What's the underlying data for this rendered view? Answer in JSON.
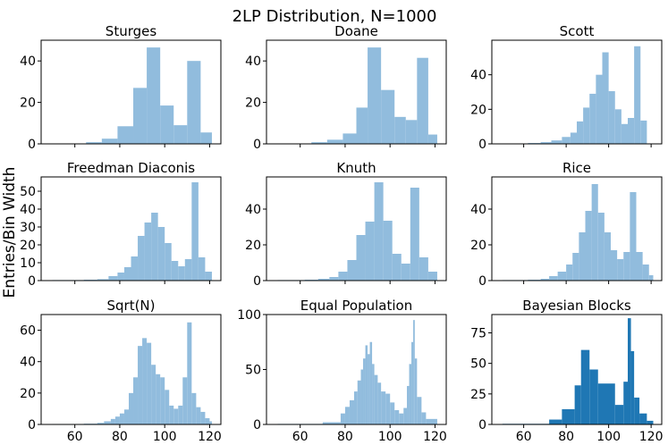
{
  "title": "2LP Distribution, N=1000",
  "ylabel": "Entries/Bin Width",
  "colors": {
    "light": "#91bcdd",
    "dark": "#1f77b4",
    "axis": "#000000"
  },
  "chart_data": [
    {
      "type": "histogram",
      "title": "Sturges",
      "xlim": [
        45,
        125
      ],
      "ylim": [
        0,
        50
      ],
      "xticks": [
        60,
        80,
        100,
        120
      ],
      "yticks": [
        0,
        20,
        40
      ],
      "show_xticklabels": false,
      "style": "light",
      "bins": [
        {
          "x0": 50,
          "x1": 58,
          "y": 0.2
        },
        {
          "x0": 58,
          "x1": 65,
          "y": 0.2
        },
        {
          "x0": 65,
          "x1": 72,
          "y": 0.8
        },
        {
          "x0": 72,
          "x1": 79,
          "y": 2.5
        },
        {
          "x0": 79,
          "x1": 86,
          "y": 8.5
        },
        {
          "x0": 86,
          "x1": 92,
          "y": 27
        },
        {
          "x0": 92,
          "x1": 98,
          "y": 46.5
        },
        {
          "x0": 98,
          "x1": 104,
          "y": 18.5
        },
        {
          "x0": 104,
          "x1": 110,
          "y": 9
        },
        {
          "x0": 110,
          "x1": 116,
          "y": 40
        },
        {
          "x0": 116,
          "x1": 121,
          "y": 5.5
        }
      ]
    },
    {
      "type": "histogram",
      "title": "Doane",
      "xlim": [
        45,
        125
      ],
      "ylim": [
        0,
        50
      ],
      "xticks": [
        60,
        80,
        100,
        120
      ],
      "yticks": [
        0,
        20,
        40
      ],
      "show_xticklabels": false,
      "style": "light",
      "bins": [
        {
          "x0": 50,
          "x1": 58,
          "y": 0.2
        },
        {
          "x0": 58,
          "x1": 65,
          "y": 0.2
        },
        {
          "x0": 65,
          "x1": 72,
          "y": 0.8
        },
        {
          "x0": 72,
          "x1": 79,
          "y": 2
        },
        {
          "x0": 79,
          "x1": 85,
          "y": 5
        },
        {
          "x0": 85,
          "x1": 90,
          "y": 17.5
        },
        {
          "x0": 90,
          "x1": 96,
          "y": 46.5
        },
        {
          "x0": 96,
          "x1": 102,
          "y": 26
        },
        {
          "x0": 102,
          "x1": 107,
          "y": 13
        },
        {
          "x0": 107,
          "x1": 112,
          "y": 11.5
        },
        {
          "x0": 112,
          "x1": 117,
          "y": 41.5
        },
        {
          "x0": 117,
          "x1": 121,
          "y": 4.5
        }
      ]
    },
    {
      "type": "histogram",
      "title": "Scott",
      "xlim": [
        45,
        125
      ],
      "ylim": [
        0,
        60
      ],
      "xticks": [
        60,
        80,
        100,
        120
      ],
      "yticks": [
        0,
        20,
        40
      ],
      "show_xticklabels": false,
      "style": "light",
      "bins": [
        {
          "x0": 50,
          "x1": 56,
          "y": 0.2
        },
        {
          "x0": 56,
          "x1": 62,
          "y": 0.2
        },
        {
          "x0": 62,
          "x1": 68,
          "y": 0.5
        },
        {
          "x0": 68,
          "x1": 73,
          "y": 1
        },
        {
          "x0": 73,
          "x1": 78,
          "y": 2
        },
        {
          "x0": 78,
          "x1": 82,
          "y": 4
        },
        {
          "x0": 82,
          "x1": 85,
          "y": 6.5
        },
        {
          "x0": 85,
          "x1": 88,
          "y": 13
        },
        {
          "x0": 88,
          "x1": 91,
          "y": 21
        },
        {
          "x0": 91,
          "x1": 94,
          "y": 29
        },
        {
          "x0": 94,
          "x1": 97,
          "y": 40
        },
        {
          "x0": 97,
          "x1": 100,
          "y": 53
        },
        {
          "x0": 100,
          "x1": 103,
          "y": 30.5
        },
        {
          "x0": 103,
          "x1": 106,
          "y": 20
        },
        {
          "x0": 106,
          "x1": 109,
          "y": 11.5
        },
        {
          "x0": 109,
          "x1": 112,
          "y": 15
        },
        {
          "x0": 112,
          "x1": 115,
          "y": 56.5
        },
        {
          "x0": 115,
          "x1": 118,
          "y": 13.5
        }
      ]
    },
    {
      "type": "histogram",
      "title": "Freedman Diaconis",
      "xlim": [
        45,
        125
      ],
      "ylim": [
        0,
        58
      ],
      "xticks": [
        60,
        80,
        100,
        120
      ],
      "yticks": [
        0,
        10,
        20,
        30,
        40,
        50
      ],
      "show_xticklabels": false,
      "style": "light",
      "bins": [
        {
          "x0": 50,
          "x1": 57,
          "y": 0.3
        },
        {
          "x0": 57,
          "x1": 64,
          "y": 0.3
        },
        {
          "x0": 64,
          "x1": 70,
          "y": 0.5
        },
        {
          "x0": 70,
          "x1": 75,
          "y": 0.8
        },
        {
          "x0": 75,
          "x1": 79,
          "y": 2.5
        },
        {
          "x0": 79,
          "x1": 82,
          "y": 4.5
        },
        {
          "x0": 82,
          "x1": 85,
          "y": 7.5
        },
        {
          "x0": 85,
          "x1": 88,
          "y": 13.5
        },
        {
          "x0": 88,
          "x1": 91,
          "y": 25
        },
        {
          "x0": 91,
          "x1": 94,
          "y": 32.5
        },
        {
          "x0": 94,
          "x1": 97,
          "y": 38
        },
        {
          "x0": 97,
          "x1": 100,
          "y": 30
        },
        {
          "x0": 100,
          "x1": 103,
          "y": 21
        },
        {
          "x0": 103,
          "x1": 106,
          "y": 11
        },
        {
          "x0": 106,
          "x1": 109,
          "y": 8
        },
        {
          "x0": 109,
          "x1": 112,
          "y": 12
        },
        {
          "x0": 112,
          "x1": 115,
          "y": 55
        },
        {
          "x0": 115,
          "x1": 118,
          "y": 13
        },
        {
          "x0": 118,
          "x1": 121,
          "y": 5
        }
      ]
    },
    {
      "type": "histogram",
      "title": "Knuth",
      "xlim": [
        45,
        125
      ],
      "ylim": [
        0,
        58
      ],
      "xticks": [
        60,
        80,
        100,
        120
      ],
      "yticks": [
        0,
        20,
        40
      ],
      "show_xticklabels": false,
      "style": "light",
      "bins": [
        {
          "x0": 50,
          "x1": 56,
          "y": 0.3
        },
        {
          "x0": 56,
          "x1": 62,
          "y": 0.3
        },
        {
          "x0": 62,
          "x1": 68,
          "y": 0.5
        },
        {
          "x0": 68,
          "x1": 73,
          "y": 1
        },
        {
          "x0": 73,
          "x1": 77,
          "y": 2
        },
        {
          "x0": 77,
          "x1": 81,
          "y": 5
        },
        {
          "x0": 81,
          "x1": 85,
          "y": 11.5
        },
        {
          "x0": 85,
          "x1": 89,
          "y": 25.5
        },
        {
          "x0": 89,
          "x1": 93,
          "y": 33
        },
        {
          "x0": 93,
          "x1": 97,
          "y": 55
        },
        {
          "x0": 97,
          "x1": 101,
          "y": 33.5
        },
        {
          "x0": 101,
          "x1": 105,
          "y": 15
        },
        {
          "x0": 105,
          "x1": 109,
          "y": 9.5
        },
        {
          "x0": 109,
          "x1": 113,
          "y": 52
        },
        {
          "x0": 113,
          "x1": 117,
          "y": 13
        },
        {
          "x0": 117,
          "x1": 121,
          "y": 5
        }
      ]
    },
    {
      "type": "histogram",
      "title": "Rice",
      "xlim": [
        45,
        125
      ],
      "ylim": [
        0,
        58
      ],
      "xticks": [
        60,
        80,
        100,
        120
      ],
      "yticks": [
        0,
        20,
        40
      ],
      "show_xticklabels": false,
      "style": "light",
      "bins": [
        {
          "x0": 50,
          "x1": 56,
          "y": 0.3
        },
        {
          "x0": 56,
          "x1": 62,
          "y": 0.3
        },
        {
          "x0": 62,
          "x1": 68,
          "y": 0.5
        },
        {
          "x0": 68,
          "x1": 72,
          "y": 1
        },
        {
          "x0": 72,
          "x1": 76,
          "y": 2.5
        },
        {
          "x0": 76,
          "x1": 80,
          "y": 5
        },
        {
          "x0": 80,
          "x1": 83,
          "y": 9
        },
        {
          "x0": 83,
          "x1": 86,
          "y": 15.5
        },
        {
          "x0": 86,
          "x1": 89,
          "y": 27
        },
        {
          "x0": 89,
          "x1": 92,
          "y": 39
        },
        {
          "x0": 92,
          "x1": 95,
          "y": 54
        },
        {
          "x0": 95,
          "x1": 98,
          "y": 38
        },
        {
          "x0": 98,
          "x1": 101,
          "y": 27
        },
        {
          "x0": 101,
          "x1": 104,
          "y": 17
        },
        {
          "x0": 104,
          "x1": 107,
          "y": 12
        },
        {
          "x0": 107,
          "x1": 110,
          "y": 16
        },
        {
          "x0": 110,
          "x1": 113,
          "y": 49.5
        },
        {
          "x0": 113,
          "x1": 116,
          "y": 16
        },
        {
          "x0": 116,
          "x1": 119,
          "y": 9
        },
        {
          "x0": 119,
          "x1": 121,
          "y": 3
        }
      ]
    },
    {
      "type": "histogram",
      "title": "Sqrt(N)",
      "xlim": [
        45,
        125
      ],
      "ylim": [
        0,
        70
      ],
      "xticks": [
        60,
        80,
        100,
        120
      ],
      "yticks": [
        0,
        20,
        40,
        60
      ],
      "show_xticklabels": true,
      "style": "light",
      "bins": [
        {
          "x0": 50,
          "x1": 57,
          "y": 0.3
        },
        {
          "x0": 57,
          "x1": 64,
          "y": 0.3
        },
        {
          "x0": 64,
          "x1": 70,
          "y": 0.5
        },
        {
          "x0": 70,
          "x1": 73,
          "y": 1
        },
        {
          "x0": 73,
          "x1": 76,
          "y": 2
        },
        {
          "x0": 76,
          "x1": 78,
          "y": 3.5
        },
        {
          "x0": 78,
          "x1": 80,
          "y": 5
        },
        {
          "x0": 80,
          "x1": 82,
          "y": 7
        },
        {
          "x0": 82,
          "x1": 84,
          "y": 9.5
        },
        {
          "x0": 84,
          "x1": 86,
          "y": 20
        },
        {
          "x0": 86,
          "x1": 88,
          "y": 30
        },
        {
          "x0": 88,
          "x1": 90,
          "y": 50
        },
        {
          "x0": 90,
          "x1": 92,
          "y": 55
        },
        {
          "x0": 92,
          "x1": 94,
          "y": 52
        },
        {
          "x0": 94,
          "x1": 96,
          "y": 38
        },
        {
          "x0": 96,
          "x1": 98,
          "y": 32
        },
        {
          "x0": 98,
          "x1": 100,
          "y": 30
        },
        {
          "x0": 100,
          "x1": 102,
          "y": 22
        },
        {
          "x0": 102,
          "x1": 104,
          "y": 12
        },
        {
          "x0": 104,
          "x1": 106,
          "y": 10
        },
        {
          "x0": 106,
          "x1": 108,
          "y": 12
        },
        {
          "x0": 108,
          "x1": 110,
          "y": 30
        },
        {
          "x0": 110,
          "x1": 112,
          "y": 65
        },
        {
          "x0": 112,
          "x1": 114,
          "y": 20
        },
        {
          "x0": 114,
          "x1": 116,
          "y": 11
        },
        {
          "x0": 116,
          "x1": 118,
          "y": 8
        },
        {
          "x0": 118,
          "x1": 120,
          "y": 4
        },
        {
          "x0": 120,
          "x1": 121,
          "y": 2
        }
      ]
    },
    {
      "type": "histogram",
      "title": "Equal Population",
      "xlim": [
        45,
        125
      ],
      "ylim": [
        0,
        100
      ],
      "xticks": [
        60,
        80,
        100,
        120
      ],
      "yticks": [
        0,
        50,
        100
      ],
      "show_xticklabels": true,
      "style": "light",
      "bins": [
        {
          "x0": 50,
          "x1": 70,
          "y": 0.5
        },
        {
          "x0": 70,
          "x1": 78,
          "y": 2
        },
        {
          "x0": 78,
          "x1": 80,
          "y": 10
        },
        {
          "x0": 80,
          "x1": 82,
          "y": 16
        },
        {
          "x0": 82,
          "x1": 84,
          "y": 22
        },
        {
          "x0": 84,
          "x1": 85.5,
          "y": 30
        },
        {
          "x0": 85.5,
          "x1": 87,
          "y": 40
        },
        {
          "x0": 87,
          "x1": 88,
          "y": 50
        },
        {
          "x0": 88,
          "x1": 89,
          "y": 60
        },
        {
          "x0": 89,
          "x1": 90,
          "y": 72
        },
        {
          "x0": 90,
          "x1": 91,
          "y": 64
        },
        {
          "x0": 91,
          "x1": 92,
          "y": 75
        },
        {
          "x0": 92,
          "x1": 93,
          "y": 55
        },
        {
          "x0": 93,
          "x1": 94.5,
          "y": 45
        },
        {
          "x0": 94.5,
          "x1": 96,
          "y": 38
        },
        {
          "x0": 96,
          "x1": 98,
          "y": 30
        },
        {
          "x0": 98,
          "x1": 100,
          "y": 28
        },
        {
          "x0": 100,
          "x1": 102,
          "y": 20
        },
        {
          "x0": 102,
          "x1": 104,
          "y": 13
        },
        {
          "x0": 104,
          "x1": 106,
          "y": 10
        },
        {
          "x0": 106,
          "x1": 107.5,
          "y": 15
        },
        {
          "x0": 107.5,
          "x1": 108.5,
          "y": 35
        },
        {
          "x0": 108.5,
          "x1": 109.5,
          "y": 55
        },
        {
          "x0": 109.5,
          "x1": 110.3,
          "y": 75
        },
        {
          "x0": 110.3,
          "x1": 111,
          "y": 95
        },
        {
          "x0": 111,
          "x1": 112,
          "y": 60
        },
        {
          "x0": 112,
          "x1": 114,
          "y": 25
        },
        {
          "x0": 114,
          "x1": 116,
          "y": 11
        },
        {
          "x0": 116,
          "x1": 121,
          "y": 5
        }
      ]
    },
    {
      "type": "histogram",
      "title": "Bayesian Blocks",
      "xlim": [
        45,
        125
      ],
      "ylim": [
        0,
        90
      ],
      "xticks": [
        60,
        80,
        100,
        120
      ],
      "yticks": [
        0,
        25,
        50,
        75
      ],
      "show_xticklabels": true,
      "style": "dark",
      "bins": [
        {
          "x0": 50,
          "x1": 72,
          "y": 0.5
        },
        {
          "x0": 72,
          "x1": 78,
          "y": 4
        },
        {
          "x0": 78,
          "x1": 84,
          "y": 12.5
        },
        {
          "x0": 84,
          "x1": 87,
          "y": 32
        },
        {
          "x0": 87,
          "x1": 91,
          "y": 61
        },
        {
          "x0": 91,
          "x1": 95,
          "y": 45
        },
        {
          "x0": 95,
          "x1": 103,
          "y": 33.5
        },
        {
          "x0": 103,
          "x1": 107,
          "y": 16
        },
        {
          "x0": 107,
          "x1": 109,
          "y": 35
        },
        {
          "x0": 109,
          "x1": 110.5,
          "y": 87
        },
        {
          "x0": 110.5,
          "x1": 112,
          "y": 60
        },
        {
          "x0": 112,
          "x1": 114.5,
          "y": 22
        },
        {
          "x0": 114.5,
          "x1": 118,
          "y": 9
        },
        {
          "x0": 118,
          "x1": 121,
          "y": 3
        }
      ]
    }
  ]
}
